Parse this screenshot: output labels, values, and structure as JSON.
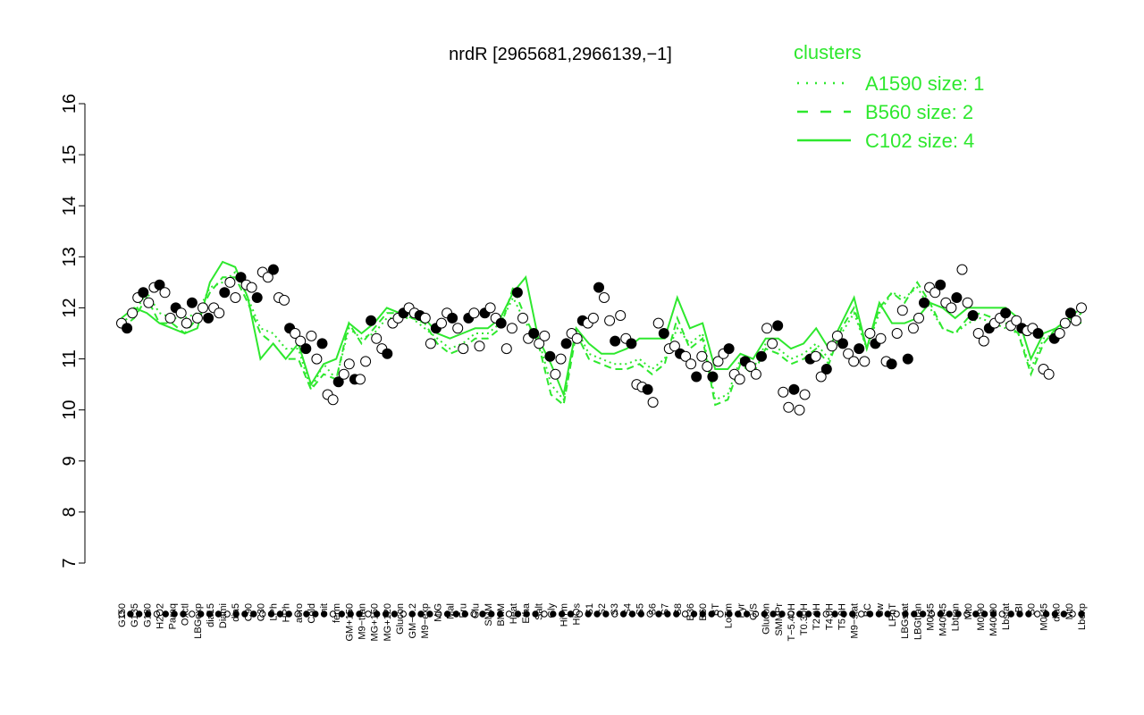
{
  "chart_data": {
    "type": "line",
    "title": "nrdR [2965681,2966139,−1]",
    "xlabel": "",
    "ylabel": "",
    "ylim": [
      7,
      16
    ],
    "yticks": [
      7,
      8,
      9,
      10,
      11,
      12,
      13,
      14,
      15,
      16
    ],
    "categories_top": [
      "G150",
      "G135",
      "G180",
      "H2O2",
      "Paraq",
      "Oxctl",
      "LBGexp",
      "dia15",
      "Diami",
      "dia5",
      "C90",
      "C30",
      "LPh",
      "HPh",
      "aero",
      "Cold",
      "nit",
      "ferm",
      "GM+150",
      "M9−tran",
      "MG+150",
      "MG+120",
      "Glucon",
      "GM−0.2",
      "M9−exp",
      "M/G",
      "Mal",
      "Fru",
      "Glu",
      "SMM",
      "BMM",
      "Heat",
      "Etha",
      "Salt",
      "Gly",
      "HiTm",
      "HiOs",
      "S1",
      "S2",
      "S3",
      "S4",
      "S5",
      "S6",
      "S7",
      "S8",
      "B36",
      "B60",
      "BT",
      "LoTm",
      "Pyr",
      "G/S",
      "Glucon",
      "SMMPr",
      "T−5.40H",
      "T0.30H",
      "T2.0H",
      "T4.0H",
      "T5.0H",
      "M9−stat",
      "BC",
      "Sw",
      "LPhT",
      "LBGstat",
      "LBGtran",
      "M0t45",
      "M40t45",
      "Lbtran",
      "Mt0",
      "M0t90",
      "M40t90",
      "Lbstat",
      "BI",
      "S0",
      "M0t45",
      "dia0",
      "Mt0",
      "Lbexp"
    ],
    "series": [
      {
        "name": "A1590 size: 1",
        "style": "dotted",
        "values": [
          11.7,
          11.9,
          12.3,
          11.9,
          11.8,
          11.8,
          11.9,
          12.4,
          12.5,
          12.7,
          12.2,
          11.6,
          11.5,
          11.2,
          11.2,
          10.4,
          10.9,
          10.6,
          11.6,
          11.4,
          11.5,
          11.8,
          11.8,
          11.8,
          11.6,
          11.4,
          11.2,
          11.3,
          11.5,
          11.5,
          11.7,
          12.2,
          11.7,
          11.4,
          10.5,
          10.2,
          11.6,
          11.1,
          11.0,
          10.9,
          10.9,
          11.0,
          10.8,
          11.0,
          11.6,
          11.3,
          11.5,
          10.2,
          10.3,
          11.0,
          10.8,
          11.3,
          11.2,
          11.0,
          11.1,
          11.3,
          11.0,
          11.5,
          11.9,
          11.2,
          11.9,
          12.3,
          12.2,
          12.4,
          12.0,
          11.6,
          11.5,
          11.7,
          11.8,
          11.7,
          11.6,
          11.5,
          10.8,
          11.4,
          11.5,
          11.8,
          12.0
        ]
      },
      {
        "name": "B560 size: 2",
        "style": "dashed",
        "values": [
          11.6,
          11.8,
          12.2,
          11.7,
          11.7,
          11.5,
          11.8,
          12.3,
          12.6,
          12.6,
          12.1,
          11.5,
          11.3,
          11.0,
          11.0,
          10.4,
          10.7,
          10.6,
          11.7,
          11.3,
          11.6,
          11.9,
          11.9,
          11.8,
          11.7,
          11.3,
          11.1,
          11.2,
          11.4,
          11.4,
          11.6,
          12.4,
          11.8,
          11.3,
          10.3,
          10.1,
          11.5,
          11.0,
          10.9,
          10.8,
          10.8,
          10.9,
          10.7,
          10.9,
          11.8,
          11.2,
          11.4,
          10.1,
          10.2,
          10.9,
          10.7,
          11.2,
          11.1,
          10.9,
          11.0,
          11.2,
          10.9,
          11.6,
          12.0,
          11.2,
          12.0,
          12.3,
          12.1,
          12.5,
          12.1,
          11.6,
          11.5,
          11.8,
          11.9,
          11.8,
          11.7,
          11.5,
          10.7,
          11.3,
          11.6,
          11.7,
          11.9
        ]
      },
      {
        "name": "C102 size: 4",
        "style": "solid",
        "values": [
          11.8,
          12.0,
          11.9,
          11.7,
          11.6,
          11.5,
          11.6,
          12.5,
          12.9,
          12.8,
          12.2,
          11.0,
          11.3,
          11.0,
          11.3,
          10.5,
          10.9,
          11.0,
          11.7,
          11.5,
          11.7,
          12.0,
          11.9,
          11.9,
          11.8,
          11.5,
          11.4,
          11.5,
          11.6,
          11.6,
          11.8,
          12.3,
          12.6,
          11.4,
          10.9,
          10.3,
          11.6,
          11.3,
          11.1,
          11.1,
          11.2,
          11.4,
          11.4,
          11.4,
          12.2,
          11.6,
          11.7,
          10.8,
          10.8,
          11.1,
          11.0,
          11.4,
          11.4,
          11.2,
          11.3,
          11.6,
          11.2,
          11.7,
          12.2,
          11.2,
          12.1,
          11.7,
          11.7,
          11.8,
          12.1,
          12.0,
          11.8,
          12.0,
          12.0,
          12.0,
          12.0,
          11.8,
          11.0,
          11.5,
          11.6,
          11.8,
          11.7
        ]
      }
    ],
    "points": [
      11.7,
      11.6,
      11.9,
      12.2,
      12.3,
      12.1,
      12.4,
      12.45,
      12.3,
      11.8,
      12.0,
      11.9,
      11.7,
      12.1,
      11.8,
      12.0,
      11.8,
      12.0,
      11.9,
      12.3,
      12.5,
      12.2,
      12.6,
      12.45,
      12.4,
      12.2,
      12.7,
      12.6,
      12.75,
      12.2,
      12.15,
      11.6,
      11.5,
      11.35,
      11.2,
      11.45,
      11.0,
      11.3,
      10.3,
      10.2,
      10.55,
      10.7,
      10.9,
      10.6,
      10.6,
      10.95,
      11.75,
      11.4,
      11.2,
      11.1,
      11.7,
      11.8,
      11.9,
      12.0,
      11.9,
      11.85,
      11.8,
      11.3,
      11.6,
      11.7,
      11.9,
      11.8,
      11.6,
      11.2,
      11.8,
      11.9,
      11.25,
      11.9,
      12.0,
      11.8,
      11.7,
      11.2,
      11.6,
      12.3,
      11.8,
      11.4,
      11.5,
      11.3,
      11.45,
      11.05,
      10.7,
      11.0,
      11.3,
      11.5,
      11.4,
      11.75,
      11.7,
      11.8,
      12.4,
      12.2,
      11.75,
      11.35,
      11.85,
      11.4,
      11.3,
      10.5,
      10.45,
      10.4,
      10.15,
      11.7,
      11.5,
      11.2,
      11.25,
      11.1,
      11.05,
      10.9,
      10.65,
      11.05,
      10.85,
      10.65,
      10.95,
      11.1,
      11.2,
      10.7,
      10.6,
      10.95,
      10.85,
      10.7,
      11.05,
      11.6,
      11.3,
      11.65,
      10.35,
      10.05,
      10.4,
      10.0,
      10.3,
      11.0,
      11.05,
      10.65,
      10.8,
      11.25,
      11.45,
      11.3,
      11.1,
      10.95,
      11.2,
      10.95,
      11.5,
      11.3,
      11.4,
      10.95,
      10.9,
      11.5,
      11.95,
      11.0,
      11.6,
      11.8,
      12.1,
      12.4,
      12.3,
      12.45,
      12.1,
      12.0,
      12.2,
      12.75,
      12.1,
      11.85,
      11.5,
      11.35,
      11.6,
      11.7,
      11.8,
      11.9,
      11.65,
      11.75,
      11.6,
      11.55,
      11.6,
      11.5,
      10.8,
      10.7,
      11.4,
      11.5,
      11.7,
      11.9,
      11.75,
      12.0
    ]
  },
  "legend": {
    "title": "clusters",
    "placement": "top-right",
    "entries": [
      "A1590 size: 1",
      "B560 size: 2",
      "C102 size: 4"
    ]
  },
  "colors": {
    "line": "#2ee82e",
    "points_fill": "#ffffff",
    "points_stroke": "#000000",
    "axis": "#000000"
  }
}
